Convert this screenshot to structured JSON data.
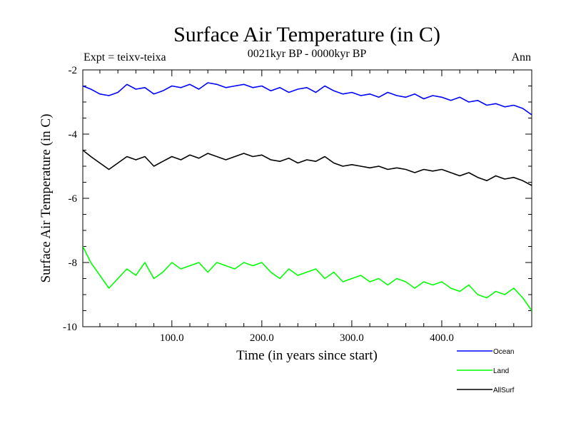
{
  "chart_data": {
    "type": "line",
    "title": "Surface Air Temperature (in C)",
    "subtitle": "0021kyr BP - 0000kyr BP",
    "expt_label": "Expt = teixv-teixa",
    "period_label": "Ann",
    "xlabel": "Time (in years since start)",
    "ylabel": "Surface Air Temperature (in C)",
    "xlim": [
      1,
      500
    ],
    "ylim": [
      -10,
      -2
    ],
    "x_ticks": [
      100,
      200,
      300,
      400
    ],
    "x_tick_labels": [
      "100.0",
      "200.0",
      "300.0",
      "400.0"
    ],
    "y_ticks": [
      -10,
      -8,
      -6,
      -4,
      -2
    ],
    "y_tick_labels": [
      "-10",
      "-8",
      "-6",
      "-4",
      "-2"
    ],
    "grid": false,
    "legend_position": "bottom-right",
    "series": [
      {
        "name": "Ocean",
        "color": "#0000ff",
        "x": [
          1,
          10,
          20,
          30,
          40,
          50,
          60,
          70,
          80,
          90,
          100,
          110,
          120,
          130,
          140,
          150,
          160,
          170,
          180,
          190,
          200,
          210,
          220,
          230,
          240,
          250,
          260,
          270,
          280,
          290,
          300,
          310,
          320,
          330,
          340,
          350,
          360,
          370,
          380,
          390,
          400,
          410,
          420,
          430,
          440,
          450,
          460,
          470,
          480,
          490,
          500
        ],
        "values": [
          -2.5,
          -2.6,
          -2.75,
          -2.8,
          -2.7,
          -2.45,
          -2.6,
          -2.55,
          -2.75,
          -2.65,
          -2.5,
          -2.55,
          -2.45,
          -2.6,
          -2.4,
          -2.45,
          -2.55,
          -2.5,
          -2.45,
          -2.55,
          -2.5,
          -2.65,
          -2.55,
          -2.7,
          -2.6,
          -2.55,
          -2.7,
          -2.5,
          -2.65,
          -2.75,
          -2.7,
          -2.8,
          -2.75,
          -2.85,
          -2.7,
          -2.8,
          -2.85,
          -2.75,
          -2.9,
          -2.8,
          -2.85,
          -2.95,
          -2.85,
          -3.0,
          -2.95,
          -3.1,
          -3.05,
          -3.15,
          -3.1,
          -3.2,
          -3.4
        ]
      },
      {
        "name": "Land",
        "color": "#00ff00",
        "x": [
          1,
          10,
          20,
          30,
          40,
          50,
          60,
          70,
          80,
          90,
          100,
          110,
          120,
          130,
          140,
          150,
          160,
          170,
          180,
          190,
          200,
          210,
          220,
          230,
          240,
          250,
          260,
          270,
          280,
          290,
          300,
          310,
          320,
          330,
          340,
          350,
          360,
          370,
          380,
          390,
          400,
          410,
          420,
          430,
          440,
          450,
          460,
          470,
          480,
          490,
          500
        ],
        "values": [
          -7.5,
          -8.0,
          -8.4,
          -8.8,
          -8.5,
          -8.2,
          -8.4,
          -8.0,
          -8.5,
          -8.3,
          -8.0,
          -8.2,
          -8.1,
          -8.0,
          -8.3,
          -8.0,
          -8.1,
          -8.2,
          -8.0,
          -8.1,
          -8.0,
          -8.3,
          -8.5,
          -8.2,
          -8.4,
          -8.3,
          -8.2,
          -8.5,
          -8.3,
          -8.6,
          -8.5,
          -8.4,
          -8.6,
          -8.5,
          -8.7,
          -8.5,
          -8.6,
          -8.8,
          -8.6,
          -8.7,
          -8.6,
          -8.8,
          -8.9,
          -8.7,
          -9.0,
          -9.1,
          -8.9,
          -9.0,
          -8.8,
          -9.1,
          -9.5
        ]
      },
      {
        "name": "AllSurf",
        "color": "#000000",
        "x": [
          1,
          10,
          20,
          30,
          40,
          50,
          60,
          70,
          80,
          90,
          100,
          110,
          120,
          130,
          140,
          150,
          160,
          170,
          180,
          190,
          200,
          210,
          220,
          230,
          240,
          250,
          260,
          270,
          280,
          290,
          300,
          310,
          320,
          330,
          340,
          350,
          360,
          370,
          380,
          390,
          400,
          410,
          420,
          430,
          440,
          450,
          460,
          470,
          480,
          490,
          500
        ],
        "values": [
          -4.5,
          -4.7,
          -4.9,
          -5.1,
          -4.9,
          -4.7,
          -4.8,
          -4.7,
          -5.0,
          -4.85,
          -4.7,
          -4.8,
          -4.65,
          -4.75,
          -4.6,
          -4.7,
          -4.8,
          -4.7,
          -4.6,
          -4.7,
          -4.65,
          -4.8,
          -4.85,
          -4.75,
          -4.9,
          -4.8,
          -4.85,
          -4.7,
          -4.9,
          -5.0,
          -4.95,
          -5.0,
          -5.05,
          -5.0,
          -5.1,
          -5.05,
          -5.1,
          -5.2,
          -5.1,
          -5.15,
          -5.1,
          -5.2,
          -5.3,
          -5.2,
          -5.35,
          -5.45,
          -5.3,
          -5.4,
          -5.35,
          -5.45,
          -5.6
        ]
      }
    ]
  }
}
